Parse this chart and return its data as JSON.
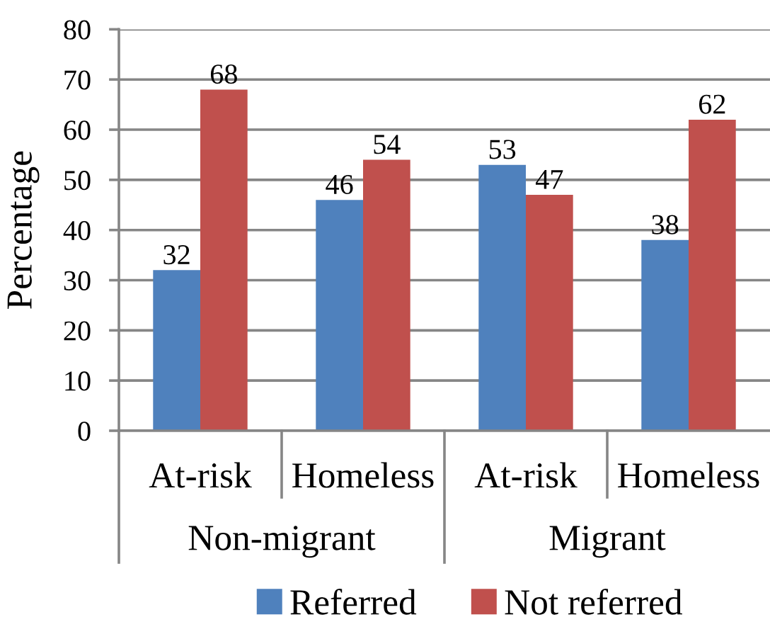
{
  "chart_data": {
    "type": "bar",
    "ylabel": "Percentage",
    "categories": [
      "At-risk",
      "Homeless",
      "At-risk",
      "Homeless"
    ],
    "annotations": [
      "Non-migrant",
      "Migrant"
    ],
    "series": [
      {
        "name": "Referred",
        "color": "#4f81bd",
        "values": [
          32,
          46,
          53,
          38
        ]
      },
      {
        "name": "Not referred",
        "color": "#c0504d",
        "values": [
          68,
          54,
          47,
          62
        ]
      }
    ],
    "ylim": [
      0,
      80
    ],
    "yticks": [
      0,
      10,
      20,
      30,
      40,
      50,
      60,
      70,
      80
    ],
    "grid": "y",
    "legend": "bottom",
    "data_labels": true
  }
}
